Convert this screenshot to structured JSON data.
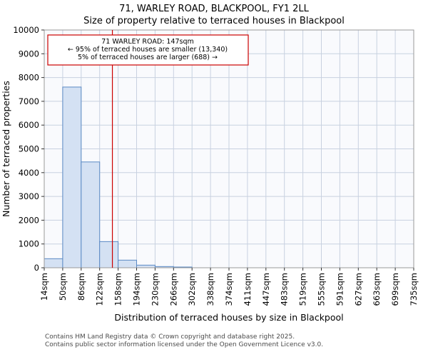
{
  "page": {
    "title_line1": "71, WARLEY ROAD, BLACKPOOL, FY1 2LL",
    "title_line2": "Size of property relative to terraced houses in Blackpool",
    "footer_line1": "Contains HM Land Registry data © Crown copyright and database right 2025.",
    "footer_line2": "Contains public sector information licensed under the Open Government Licence v3.0."
  },
  "chart_data": {
    "type": "bar",
    "title": "71, WARLEY ROAD, BLACKPOOL, FY1 2LL",
    "subtitle": "Size of property relative to terraced houses in Blackpool",
    "xlabel": "Distribution of terraced houses by size in Blackpool",
    "ylabel": "Number of terraced properties",
    "bin_edges_sqm": [
      14,
      50,
      86,
      122,
      158,
      194,
      230,
      266,
      302,
      338,
      374,
      411,
      447,
      483,
      519,
      555,
      591,
      627,
      663,
      699,
      735
    ],
    "tick_labels": [
      "14sqm",
      "50sqm",
      "86sqm",
      "122sqm",
      "158sqm",
      "194sqm",
      "230sqm",
      "266sqm",
      "302sqm",
      "338sqm",
      "374sqm",
      "411sqm",
      "447sqm",
      "483sqm",
      "519sqm",
      "555sqm",
      "591sqm",
      "627sqm",
      "663sqm",
      "699sqm",
      "735sqm"
    ],
    "values": [
      380,
      7600,
      4450,
      1100,
      320,
      110,
      50,
      30,
      0,
      0,
      0,
      0,
      0,
      0,
      0,
      0,
      0,
      0,
      0,
      0
    ],
    "ylim": [
      0,
      10000
    ],
    "ytick_step": 1000,
    "grid": true,
    "legend": "none",
    "marker": {
      "value_sqm": 147,
      "label_line1": "71 WARLEY ROAD: 147sqm",
      "label_line2": "← 95% of terraced houses are smaller (13,340)",
      "label_line3": "5% of terraced houses are larger (688) →",
      "line_color": "#cc0000"
    },
    "colors": {
      "bar_fill": "#d4e1f3",
      "bar_stroke": "#5b8ac5",
      "grid": "#c8d1e0",
      "plot_bg": "#f9fafd",
      "frame": "#999999",
      "annotation_border": "#cc0000",
      "footer_text": "#4a4a4a"
    }
  }
}
